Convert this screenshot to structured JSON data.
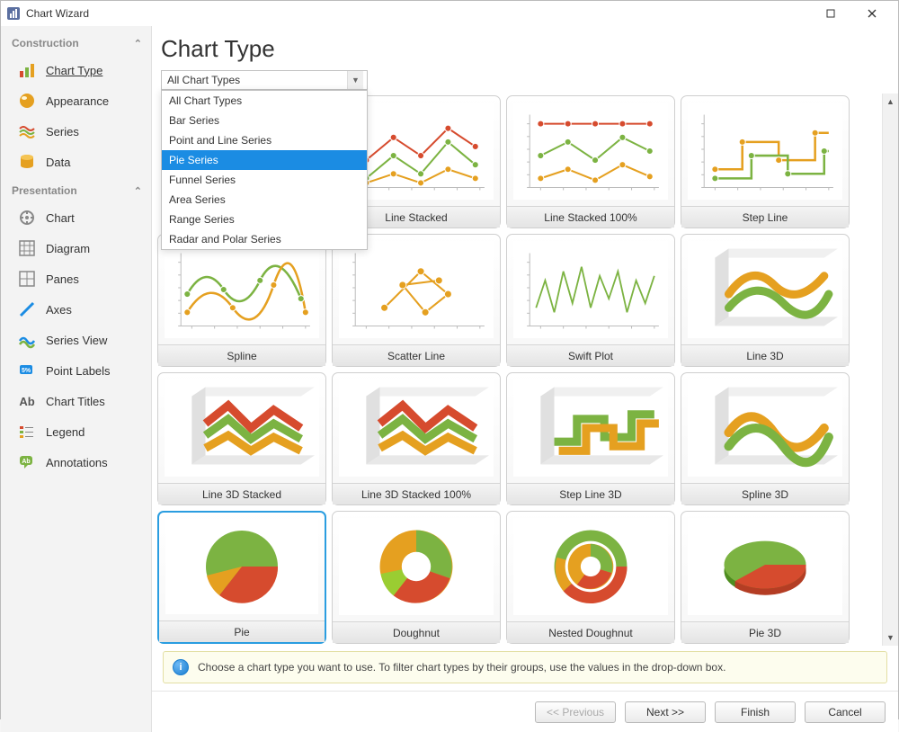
{
  "window": {
    "title": "Chart Wizard"
  },
  "sidebar": {
    "sections": [
      {
        "title": "Construction",
        "items": [
          {
            "key": "chart-type",
            "label": "Chart Type",
            "selected": true
          },
          {
            "key": "appearance",
            "label": "Appearance"
          },
          {
            "key": "series",
            "label": "Series"
          },
          {
            "key": "data",
            "label": "Data"
          }
        ]
      },
      {
        "title": "Presentation",
        "items": [
          {
            "key": "chart",
            "label": "Chart"
          },
          {
            "key": "diagram",
            "label": "Diagram"
          },
          {
            "key": "panes",
            "label": "Panes"
          },
          {
            "key": "axes",
            "label": "Axes"
          },
          {
            "key": "series-view",
            "label": "Series View"
          },
          {
            "key": "point-labels",
            "label": "Point Labels"
          },
          {
            "key": "chart-titles",
            "label": "Chart Titles"
          },
          {
            "key": "legend",
            "label": "Legend"
          },
          {
            "key": "annotations",
            "label": "Annotations"
          }
        ]
      }
    ]
  },
  "main": {
    "title": "Chart Type",
    "filter_selected": "All Chart Types",
    "dropdown": {
      "items": [
        "All Chart Types",
        "Bar Series",
        "Point and Line Series",
        "Pie Series",
        "Funnel Series",
        "Area Series",
        "Range Series",
        "Radar and Polar Series"
      ],
      "highlight_index": 3
    }
  },
  "gallery": {
    "palette": {
      "green": "#7cb342",
      "green_dark": "#4e8d1f",
      "orange": "#e5a020",
      "orange_dark": "#c77a00",
      "red": "#d64b2e",
      "gray_axis": "#bcbcbc",
      "bg": "#ffffff"
    },
    "row1": [
      {
        "key": "line-stacked",
        "label": "Line Stacked",
        "kind": "line2"
      },
      {
        "key": "line-stacked-100",
        "label": "Line Stacked 100%",
        "kind": "line2-flat"
      },
      {
        "key": "step-line",
        "label": "Step Line",
        "kind": "step"
      }
    ],
    "row2": [
      {
        "key": "spline",
        "label": "Spline",
        "kind": "spline"
      },
      {
        "key": "scatter-line",
        "label": "Scatter Line",
        "kind": "scatter"
      },
      {
        "key": "swift-plot",
        "label": "Swift Plot",
        "kind": "swift"
      },
      {
        "key": "line-3d",
        "label": "Line 3D",
        "kind": "3d-line"
      }
    ],
    "row3": [
      {
        "key": "line-3d-stacked",
        "label": "Line 3D Stacked",
        "kind": "3d-stack"
      },
      {
        "key": "line-3d-stacked-100",
        "label": "Line 3D Stacked 100%",
        "kind": "3d-stack"
      },
      {
        "key": "step-line-3d",
        "label": "Step Line 3D",
        "kind": "3d-step"
      },
      {
        "key": "spline-3d",
        "label": "Spline 3D",
        "kind": "3d-spline"
      }
    ],
    "row4": [
      {
        "key": "pie",
        "label": "Pie",
        "kind": "pie",
        "selected": true
      },
      {
        "key": "doughnut",
        "label": "Doughnut",
        "kind": "donut"
      },
      {
        "key": "nested-doughnut",
        "label": "Nested Doughnut",
        "kind": "nested-donut"
      },
      {
        "key": "pie-3d",
        "label": "Pie 3D",
        "kind": "pie3d"
      }
    ]
  },
  "hint": "Choose a chart type you want to use. To filter chart types by their groups, use the values in the drop-down box.",
  "footer": {
    "prev": "<< Previous",
    "next": "Next >>",
    "finish": "Finish",
    "cancel": "Cancel"
  }
}
